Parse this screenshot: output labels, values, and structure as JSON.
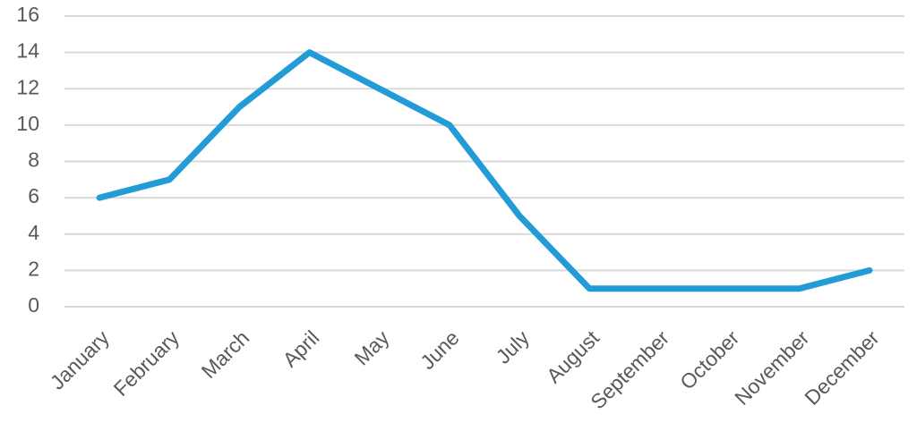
{
  "chart_data": {
    "type": "line",
    "categories": [
      "January",
      "February",
      "March",
      "April",
      "May",
      "June",
      "July",
      "August",
      "September",
      "October",
      "November",
      "December"
    ],
    "values": [
      6,
      7,
      11,
      14,
      12,
      10,
      5,
      1,
      1,
      1,
      1,
      2
    ],
    "color": "#229bd6",
    "ylim": [
      0,
      16
    ],
    "yticks": [
      0,
      2,
      4,
      6,
      8,
      10,
      12,
      14,
      16
    ],
    "grid": true
  }
}
